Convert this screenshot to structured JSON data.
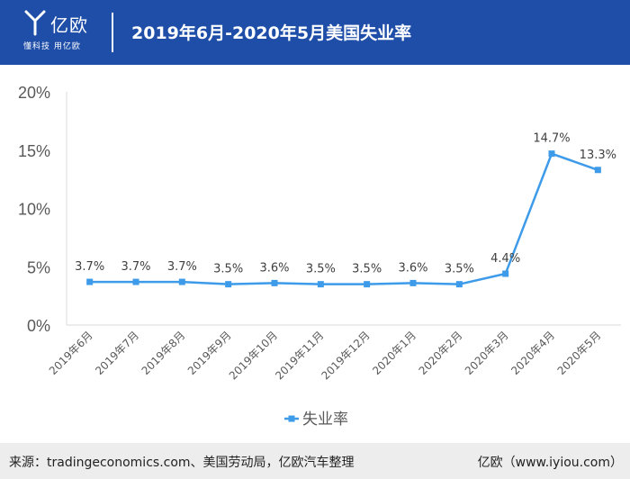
{
  "header": {
    "logo_name": "亿欧",
    "logo_slogan": "懂科技 用亿欧",
    "title": "2019年6月-2020年5月美国失业率"
  },
  "footer": {
    "source": "来源：tradingeconomics.com、美国劳动局，亿欧汽车整理",
    "brand": "亿欧（www.iyiou.com）"
  },
  "colors": {
    "header_bg": "#1e4ea8",
    "series": "#3d9be9",
    "footer_bg": "#ededed"
  },
  "chart_data": {
    "type": "line",
    "categories": [
      "2019年6月",
      "2019年7月",
      "2019年8月",
      "2019年9月",
      "2019年10月",
      "2019年11月",
      "2019年12月",
      "2020年1月",
      "2020年2月",
      "2020年3月",
      "2020年4月",
      "2020年5月"
    ],
    "series": [
      {
        "name": "失业率",
        "values": [
          3.7,
          3.7,
          3.7,
          3.5,
          3.6,
          3.5,
          3.5,
          3.6,
          3.5,
          4.4,
          14.7,
          13.3
        ],
        "labels": [
          "3.7%",
          "3.7%",
          "3.7%",
          "3.5%",
          "3.6%",
          "3.5%",
          "3.5%",
          "3.6%",
          "3.5%",
          "4.4%",
          "14.7%",
          "13.3%"
        ]
      }
    ],
    "y_ticks": [
      "0%",
      "5%",
      "10%",
      "15%",
      "20%"
    ],
    "ylim": [
      0,
      20
    ],
    "grid": false,
    "legend_position": "bottom"
  }
}
